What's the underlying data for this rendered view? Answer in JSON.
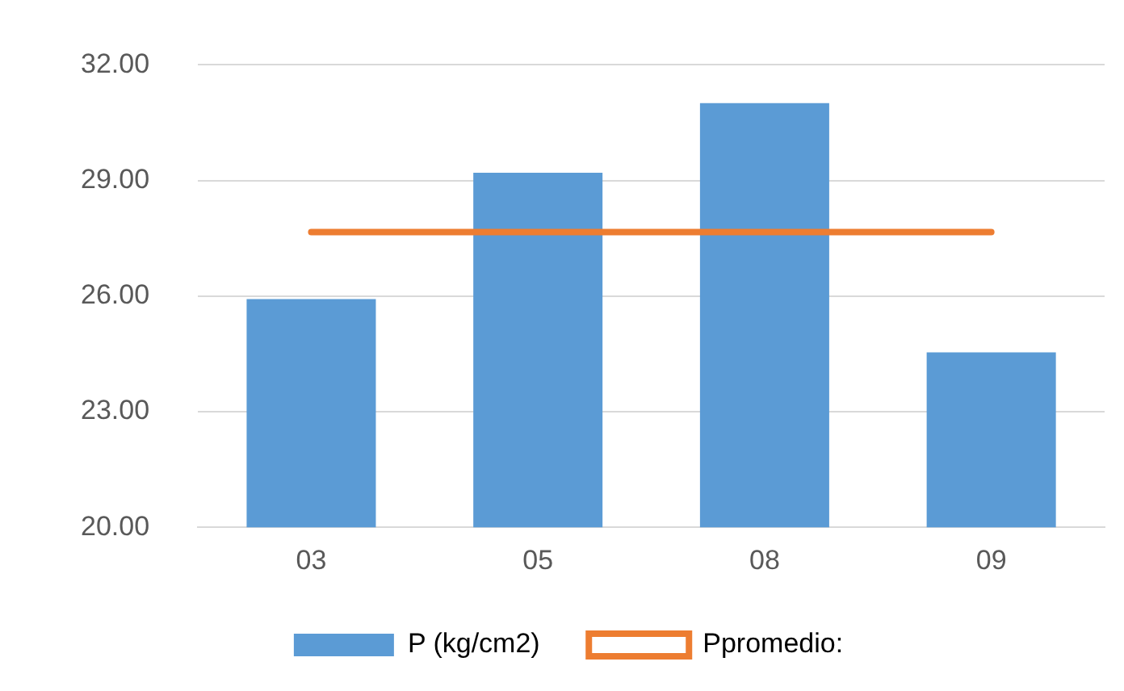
{
  "chart_data": {
    "type": "bar",
    "categories": [
      "03",
      "05",
      "08",
      "09"
    ],
    "series": [
      {
        "name": "P (kg/cm2)",
        "color": "#5b9bd5",
        "values": [
          25.92,
          29.2,
          31.01,
          24.54
        ]
      },
      {
        "name": "Ppromedio:",
        "type": "line",
        "color": "#ed7d31",
        "values": [
          27.66,
          27.66,
          27.66,
          27.66
        ]
      }
    ],
    "ylim": [
      20,
      32
    ],
    "yticks": [
      {
        "value": 20,
        "label": "20.00"
      },
      {
        "value": 23,
        "label": "23.00"
      },
      {
        "value": 26,
        "label": "26.00"
      },
      {
        "value": 29,
        "label": "29.00"
      },
      {
        "value": 32,
        "label": "32.00"
      }
    ],
    "grid": "y",
    "legend": "bottom",
    "marker": "none",
    "line_style": "solid"
  }
}
